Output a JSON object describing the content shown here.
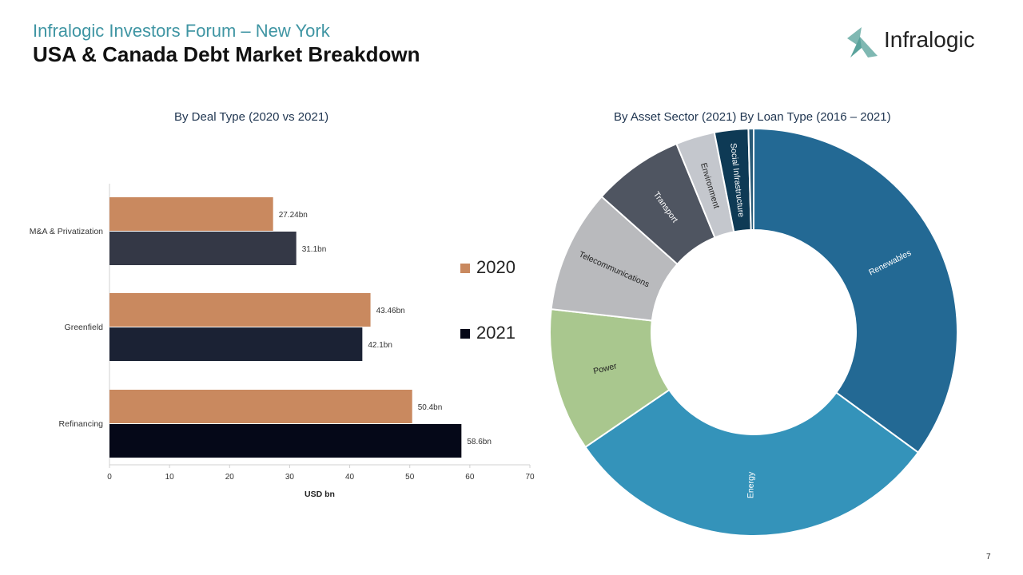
{
  "header": {
    "subtitle": "Infralogic Investors Forum – New York",
    "title": "USA & Canada Debt Market Breakdown",
    "logo_text": "Infralogic"
  },
  "page_number": "7",
  "colors": {
    "y2020": "#c9895f",
    "y2021_ma": "#343846",
    "y2021_green": "#1b2234",
    "y2021_refi": "#050818"
  },
  "chart_data": [
    {
      "type": "bar",
      "orientation": "horizontal",
      "title": "By Deal Type (2020 vs 2021)",
      "categories": [
        "M&A & Privatization",
        "Greenfield",
        "Refinancing"
      ],
      "series": [
        {
          "name": "2020",
          "values": [
            27.24,
            43.46,
            50.4
          ],
          "labels": [
            "27.24bn",
            "43.46bn",
            "50.4bn"
          ]
        },
        {
          "name": "2021",
          "values": [
            31.1,
            42.1,
            58.6
          ],
          "labels": [
            "31.1bn",
            "42.1bn",
            "58.6bn"
          ]
        }
      ],
      "xlabel": "USD bn",
      "xlim": [
        0,
        70
      ],
      "xticks": [
        "0",
        "10",
        "20",
        "30",
        "40",
        "50",
        "60",
        "70"
      ],
      "legend": [
        "2020",
        "2021"
      ]
    },
    {
      "type": "pie",
      "style": "donut",
      "title": "By Asset Sector (2021) By Loan Type (2016 – 2021)",
      "slices": [
        {
          "label": "Renewables",
          "value": 34.0,
          "color": "#236994"
        },
        {
          "label": "Energy",
          "value": 29.5,
          "color": "#3493ba"
        },
        {
          "label": "Power",
          "value": 11.0,
          "color": "#a9c78e"
        },
        {
          "label": "Telecommunications",
          "value": 9.5,
          "color": "#b9babd"
        },
        {
          "label": "Transport",
          "value": 7.0,
          "color": "#4f5561"
        },
        {
          "label": "Environment",
          "value": 3.0,
          "color": "#c4c7cd"
        },
        {
          "label": "Social Infrastructure",
          "value": 2.6,
          "color": "#0e3a55"
        },
        {
          "label": "",
          "value": 0.4,
          "color": "#2a5b78"
        }
      ]
    }
  ]
}
